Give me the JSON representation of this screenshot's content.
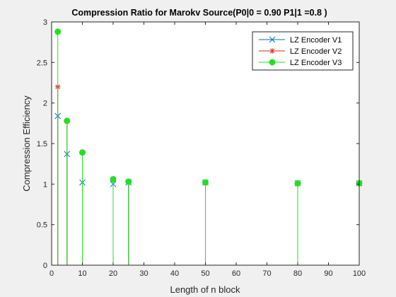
{
  "chart_data": {
    "type": "stem",
    "title": "Compression Ratio for Marokv Source(P0|0 = 0.90 P1|1 =0.8 )",
    "xlabel": "Length of n block",
    "ylabel": "Compression Efficiency",
    "xlim": [
      0,
      100
    ],
    "ylim": [
      0,
      3
    ],
    "xticks": [
      0,
      10,
      20,
      30,
      40,
      50,
      60,
      70,
      80,
      90,
      100
    ],
    "xtick_labels": [
      "0",
      "10",
      "20",
      "30",
      "40",
      "50",
      "60",
      "70",
      "80",
      "90",
      "100"
    ],
    "yticks": [
      0,
      0.5,
      1,
      1.5,
      2,
      2.5,
      3
    ],
    "ytick_labels": [
      "0",
      "0.5",
      "1",
      "1.5",
      "2",
      "2.5",
      "3"
    ],
    "grid": false,
    "legend_position": "top-right",
    "x": [
      2,
      5,
      10,
      20,
      25,
      50,
      80,
      100
    ],
    "series": [
      {
        "name": "LZ Encoder V1",
        "color": "#0072BD",
        "marker": "x",
        "values": [
          1.84,
          1.37,
          1.02,
          1.0,
          1.02,
          1.02,
          1.01,
          1.01
        ]
      },
      {
        "name": "LZ Encoder V2",
        "color": "#D62C1E",
        "marker": "asterisk",
        "values": [
          2.2,
          1.78,
          1.39,
          1.06,
          1.03,
          1.02,
          1.01,
          1.01
        ]
      },
      {
        "name": "LZ Encoder V3",
        "color": "#22E022",
        "marker": "filled-circle",
        "values": [
          2.88,
          1.78,
          1.39,
          1.06,
          1.03,
          1.02,
          1.01,
          1.01
        ]
      }
    ]
  }
}
